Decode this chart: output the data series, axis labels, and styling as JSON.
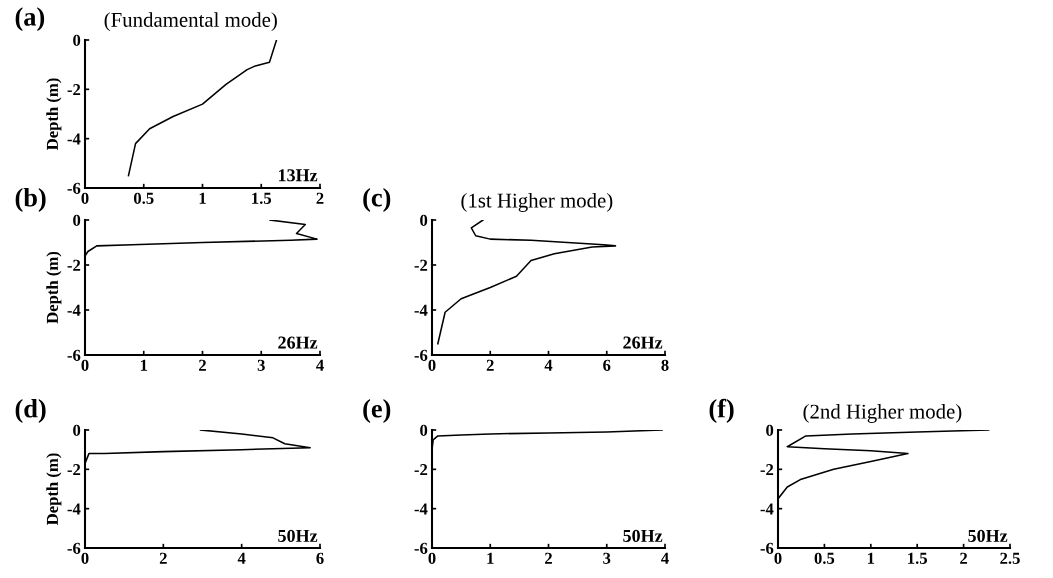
{
  "chart_data": [
    {
      "type": "line",
      "title": "(a)",
      "subtitle": "(Fundamental mode)",
      "ylabel": "Depth (m)",
      "annotations": [
        "13Hz"
      ],
      "xlim": [
        0,
        2
      ],
      "xticks": [
        0,
        0.5,
        1,
        1.5,
        2
      ],
      "ylim": [
        -6,
        0
      ],
      "yticks": [
        -6,
        -4,
        -2,
        0
      ],
      "series": [
        {
          "color": "#000000",
          "x": [
            1.63,
            1.57,
            1.45,
            1.38,
            1.2,
            1.0,
            0.75,
            0.55,
            0.43,
            0.37
          ],
          "values": [
            0,
            -0.9,
            -1.05,
            -1.2,
            -1.8,
            -2.6,
            -3.1,
            -3.6,
            -4.2,
            -5.5
          ]
        }
      ]
    },
    {
      "type": "line",
      "title": "(b)",
      "ylabel": "Depth (m)",
      "annotations": [
        "26Hz"
      ],
      "xlim": [
        0,
        4
      ],
      "xticks": [
        0,
        1,
        2,
        3,
        4
      ],
      "ylim": [
        -6,
        0
      ],
      "yticks": [
        -6,
        -4,
        -2,
        0
      ],
      "series": [
        {
          "color": "#000000",
          "x": [
            3.15,
            3.75,
            3.6,
            3.95,
            3.5,
            2.0,
            0.8,
            0.2,
            0.05,
            0
          ],
          "values": [
            0,
            -0.2,
            -0.6,
            -0.85,
            -0.9,
            -1.0,
            -1.1,
            -1.15,
            -1.4,
            -1.6
          ]
        }
      ]
    },
    {
      "type": "line",
      "title": "(c)",
      "subtitle": "(1st Higher mode)",
      "annotations": [
        "26Hz"
      ],
      "xlim": [
        0,
        8
      ],
      "xticks": [
        0,
        2,
        4,
        6,
        8
      ],
      "ylim": [
        -6,
        0
      ],
      "yticks": [
        -6,
        -4,
        -2,
        0
      ],
      "series": [
        {
          "color": "#000000",
          "x": [
            1.75,
            1.35,
            1.5,
            2.0,
            3.4,
            5.9,
            6.3,
            5.5,
            4.2,
            3.4,
            2.9,
            2.0,
            1.0,
            0.45,
            0.2
          ],
          "values": [
            0,
            -0.35,
            -0.7,
            -0.85,
            -0.9,
            -1.1,
            -1.15,
            -1.2,
            -1.5,
            -1.8,
            -2.5,
            -3.0,
            -3.5,
            -4.1,
            -5.5
          ]
        }
      ]
    },
    {
      "type": "line",
      "title": "(d)",
      "ylabel": "Depth (m)",
      "annotations": [
        "50Hz"
      ],
      "xlim": [
        0,
        6
      ],
      "xticks": [
        0,
        2,
        4,
        6
      ],
      "ylim": [
        -6,
        0
      ],
      "yticks": [
        -6,
        -4,
        -2,
        0
      ],
      "series": [
        {
          "color": "#000000",
          "x": [
            2.95,
            4.0,
            4.8,
            5.1,
            5.75,
            4.0,
            2.0,
            0.5,
            0.1,
            0
          ],
          "values": [
            0,
            -0.2,
            -0.4,
            -0.7,
            -0.9,
            -1.0,
            -1.1,
            -1.2,
            -1.2,
            -1.7
          ]
        }
      ]
    },
    {
      "type": "line",
      "title": "(e)",
      "annotations": [
        "50Hz"
      ],
      "xlim": [
        0,
        4
      ],
      "xticks": [
        0,
        1,
        2,
        3,
        4
      ],
      "ylim": [
        -6,
        0
      ],
      "yticks": [
        -6,
        -4,
        -2,
        0
      ],
      "series": [
        {
          "color": "#000000",
          "x": [
            3.95,
            3.0,
            2.0,
            1.0,
            0.5,
            0.1,
            0.02,
            0,
            0
          ],
          "values": [
            0,
            -0.1,
            -0.15,
            -0.2,
            -0.25,
            -0.3,
            -0.5,
            -1.0,
            -1.7
          ]
        }
      ]
    },
    {
      "type": "line",
      "title": "(f)",
      "subtitle": "(2nd Higher mode)",
      "annotations": [
        "50Hz"
      ],
      "xlim": [
        0,
        2.5
      ],
      "xticks": [
        0,
        0.5,
        1,
        1.5,
        2,
        2.5
      ],
      "ylim": [
        -6,
        0
      ],
      "yticks": [
        -6,
        -4,
        -2,
        0
      ],
      "series": [
        {
          "color": "#000000",
          "x": [
            2.27,
            1.5,
            0.8,
            0.3,
            0.1,
            0.5,
            1.0,
            1.4,
            1.0,
            0.6,
            0.25,
            0.1,
            0
          ],
          "values": [
            0,
            -0.1,
            -0.2,
            -0.3,
            -0.85,
            -0.95,
            -1.05,
            -1.2,
            -1.6,
            -2.0,
            -2.5,
            -2.9,
            -3.5
          ]
        }
      ]
    }
  ]
}
